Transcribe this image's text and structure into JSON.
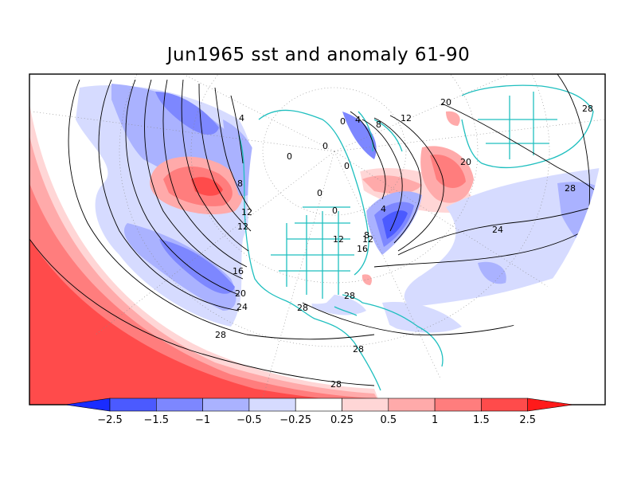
{
  "title": "Jun1965 sst and anomaly 61-90",
  "colors": {
    "blue_strong": "#1a2cff",
    "blue_dark": "#4b5aff",
    "blue_med": "#7d87ff",
    "blue_light": "#aab2ff",
    "blue_pale": "#d6dbff",
    "red_pale": "#ffd6d6",
    "red_light": "#ffaaaa",
    "red_med": "#ff7d7d",
    "red_dark": "#ff4b4b",
    "red_strong": "#ff1a1a",
    "coast": "#1fbfbf",
    "contour": "#000000"
  },
  "colorbar": {
    "labels": [
      "-2.5",
      "-1.5",
      "-1",
      "-0.5",
      "-0.25",
      "0.25",
      "0.5",
      "1",
      "1.5",
      "2.5"
    ]
  },
  "contour_labels": [
    {
      "text": "4"
    },
    {
      "text": "8"
    },
    {
      "text": "12"
    },
    {
      "text": "12"
    },
    {
      "text": "16"
    },
    {
      "text": "20"
    },
    {
      "text": "24"
    },
    {
      "text": "28"
    },
    {
      "text": "28"
    },
    {
      "text": "28"
    },
    {
      "text": "28"
    },
    {
      "text": "0"
    },
    {
      "text": "0"
    },
    {
      "text": "0"
    },
    {
      "text": "0"
    },
    {
      "text": "0"
    },
    {
      "text": "4"
    },
    {
      "text": "8"
    },
    {
      "text": "12"
    },
    {
      "text": "12"
    },
    {
      "text": "16"
    },
    {
      "text": "4"
    },
    {
      "text": "20"
    },
    {
      "text": "20"
    },
    {
      "text": "24"
    },
    {
      "text": "28"
    },
    {
      "text": "28"
    },
    {
      "text": "28"
    },
    {
      "text": "12"
    },
    {
      "text": "0"
    },
    {
      "text": "8"
    }
  ]
}
